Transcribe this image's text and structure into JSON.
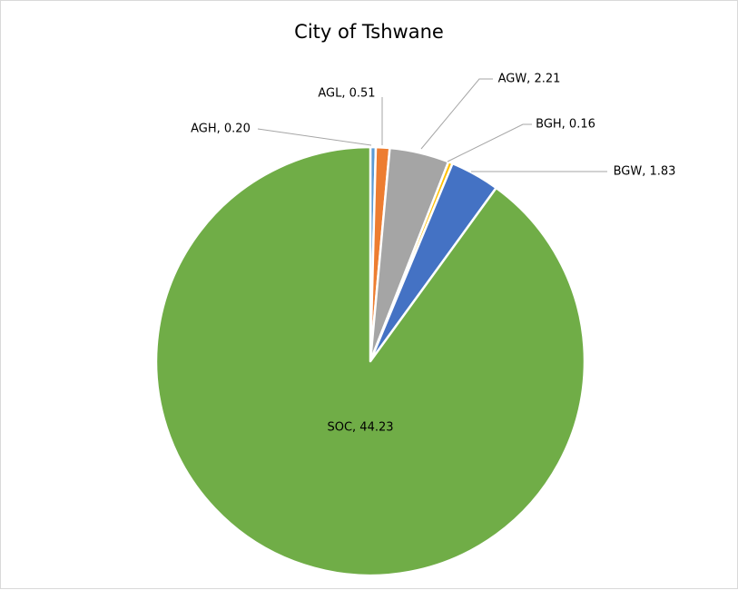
{
  "chart_data": {
    "type": "pie",
    "title": "City of Tshwane",
    "slices": [
      {
        "name": "AGH",
        "value": 0.2,
        "label": "AGH, 0.20",
        "color": "#5b9bd5"
      },
      {
        "name": "AGL",
        "value": 0.51,
        "label": "AGL, 0.51",
        "color": "#ed7d31"
      },
      {
        "name": "AGW",
        "value": 2.21,
        "label": "AGW, 2.21",
        "color": "#a5a5a5"
      },
      {
        "name": "BGH",
        "value": 0.16,
        "label": "BGH, 0.16",
        "color": "#ffc000"
      },
      {
        "name": "BGW",
        "value": 1.83,
        "label": "BGW, 1.83",
        "color": "#4472c4"
      },
      {
        "name": "SOC",
        "value": 44.23,
        "label": "SOC, 44.23",
        "color": "#70ad47"
      }
    ],
    "start_angle": "12 o'clock",
    "direction": "clockwise",
    "legend": "none"
  }
}
